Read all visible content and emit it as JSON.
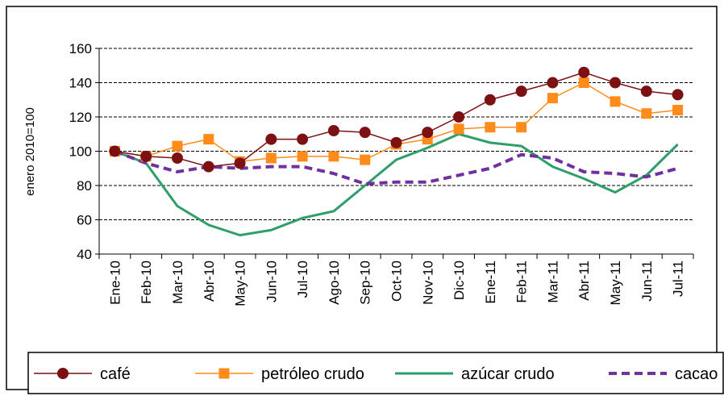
{
  "chart_data": {
    "type": "line",
    "y_label": "enero 2010=100",
    "categories": [
      "Ene-10",
      "Feb-10",
      "Mar-10",
      "Abr-10",
      "May-10",
      "Jun-10",
      "Jul-10",
      "Ago-10",
      "Sep-10",
      "Oct-10",
      "Nov-10",
      "Dic-10",
      "Ene-11",
      "Feb-11",
      "Mar-11",
      "Abr-11",
      "May-11",
      "Jun-11",
      "Jul-11"
    ],
    "ylim": [
      40,
      160
    ],
    "yticks": [
      40,
      60,
      80,
      100,
      120,
      140,
      160
    ],
    "grid": true,
    "series": [
      {
        "name": "café",
        "color": "#7b1113",
        "marker": "circle",
        "dash": false,
        "values": [
          100,
          97,
          96,
          91,
          93,
          107,
          107,
          112,
          111,
          105,
          111,
          120,
          130,
          135,
          140,
          146,
          140,
          135,
          133
        ]
      },
      {
        "name": "petróleo crudo",
        "color": "#ff8c1a",
        "marker": "square",
        "dash": false,
        "values": [
          100,
          97,
          103,
          107,
          94,
          96,
          97,
          97,
          95,
          104,
          107,
          113,
          114,
          114,
          131,
          140,
          129,
          122,
          124
        ]
      },
      {
        "name": "azúcar crudo",
        "color": "#2e9e6a",
        "marker": "none",
        "dash": false,
        "values": [
          100,
          93,
          68,
          57,
          51,
          54,
          61,
          65,
          80,
          95,
          102,
          110,
          105,
          103,
          91,
          84,
          76,
          86,
          104
        ]
      },
      {
        "name": "cacao",
        "color": "#7030a0",
        "marker": "none",
        "dash": true,
        "values": [
          100,
          93,
          88,
          91,
          90,
          91,
          91,
          87,
          81,
          82,
          82,
          86,
          90,
          98,
          96,
          88,
          87,
          85,
          90
        ]
      }
    ]
  }
}
